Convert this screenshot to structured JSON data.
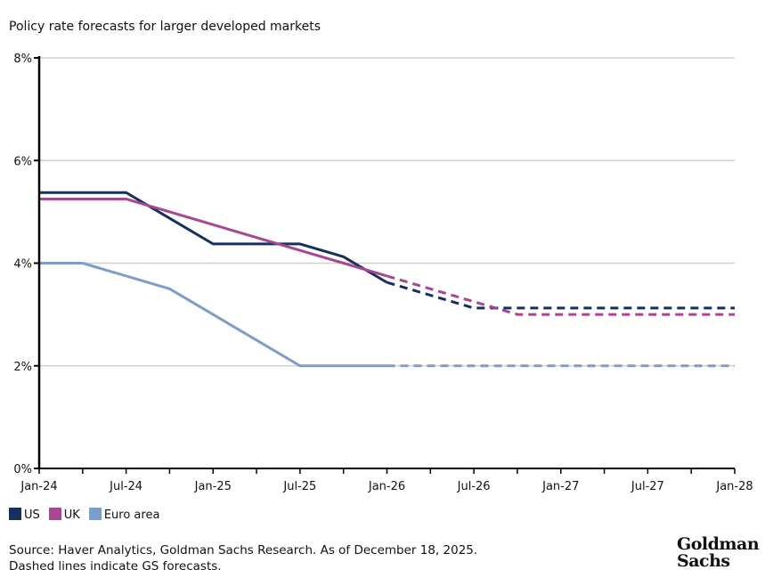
{
  "chart_data": {
    "type": "line",
    "title": "Policy rate forecasts for larger developed markets",
    "xlabel": "",
    "ylabel": "",
    "x_ticks": [
      "Jan-24",
      "Jul-24",
      "Jan-25",
      "Jul-25",
      "Jan-26",
      "Jul-26",
      "Jan-27",
      "Jul-27",
      "Jan-28"
    ],
    "xlim": [
      "2024-01",
      "2028-01"
    ],
    "y_ticks": [
      "0%",
      "2%",
      "4%",
      "6%",
      "8%"
    ],
    "ylim": [
      0,
      8
    ],
    "grid": "horizontal",
    "legend_placement": "bottom-left",
    "forecast_start": "2026-01",
    "series": [
      {
        "name": "US",
        "color": "#14305e",
        "points": [
          [
            "2024-01",
            5.375
          ],
          [
            "2024-07",
            5.375
          ],
          [
            "2025-01",
            4.375
          ],
          [
            "2025-07",
            4.375
          ],
          [
            "2025-10",
            4.125
          ],
          [
            "2026-01",
            3.625
          ],
          [
            "2026-07",
            3.125
          ],
          [
            "2028-01",
            3.125
          ]
        ]
      },
      {
        "name": "UK",
        "color": "#a8468f",
        "points": [
          [
            "2024-01",
            5.25
          ],
          [
            "2024-07",
            5.25
          ],
          [
            "2026-01",
            3.75
          ],
          [
            "2026-10",
            3.0
          ],
          [
            "2028-01",
            3.0
          ]
        ]
      },
      {
        "name": "Euro area",
        "color": "#7b9dca",
        "points": [
          [
            "2024-01",
            4.0
          ],
          [
            "2024-04",
            4.0
          ],
          [
            "2024-10",
            3.5
          ],
          [
            "2025-07",
            2.0
          ],
          [
            "2028-01",
            2.0
          ]
        ]
      }
    ]
  },
  "source": "Source: Haver Analytics, Goldman Sachs Research. As of December 18, 2025.",
  "note": "Dashed lines indicate GS forecasts.",
  "logo": "Goldman Sachs"
}
